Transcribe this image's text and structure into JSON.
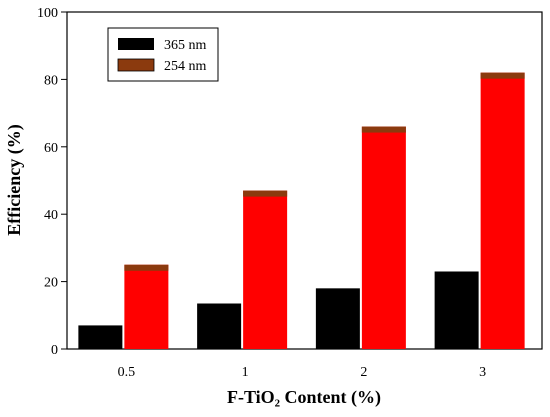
{
  "chart_data": {
    "type": "bar",
    "xlabel": "F-TiO₂ Content (%)",
    "ylabel": "Efficiency (%)",
    "categories": [
      "0.5",
      "1",
      "2",
      "3"
    ],
    "ylim": [
      0,
      100
    ],
    "yticks": [
      0,
      20,
      40,
      60,
      80,
      100
    ],
    "legend_position": "top-left",
    "grid": false,
    "series": [
      {
        "name": "365 nm",
        "color": "#000000",
        "values": [
          7,
          13.5,
          18,
          23
        ]
      },
      {
        "name": "254 nm",
        "color": "#ff0000",
        "legend_color": "#8b3a0e",
        "values": [
          25,
          47,
          66,
          82
        ]
      }
    ],
    "series_254_cap_color": "#8b3a0e"
  }
}
